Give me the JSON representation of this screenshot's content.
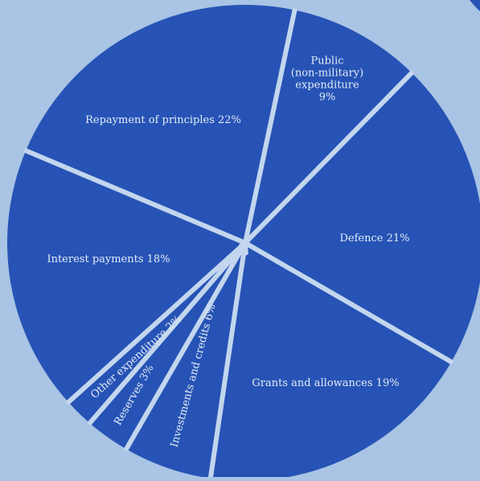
{
  "chart_data": {
    "type": "pie",
    "colors": {
      "background": "#a9c4e4",
      "slice": "#2653b5",
      "separator": "#c3d6ee",
      "label": "#e4ecf6"
    },
    "slices": [
      {
        "label_lines": [
          "Public",
          "(non-military)",
          "expenditure",
          "9%"
        ],
        "value": 9
      },
      {
        "label_lines": [
          "Defence 21%"
        ],
        "value": 21
      },
      {
        "label_lines": [
          "Grants and allowances 19%"
        ],
        "value": 19
      },
      {
        "label_lines": [
          "Investments and credits 6%"
        ],
        "value": 6
      },
      {
        "label_lines": [
          "Reserves 3%"
        ],
        "value": 3
      },
      {
        "label_lines": [
          "Other expenditure 2%"
        ],
        "value": 2
      },
      {
        "label_lines": [
          "Interest payments 18%"
        ],
        "value": 18
      },
      {
        "label_lines": [
          "Repayment of principles 22%"
        ],
        "value": 22
      }
    ]
  }
}
